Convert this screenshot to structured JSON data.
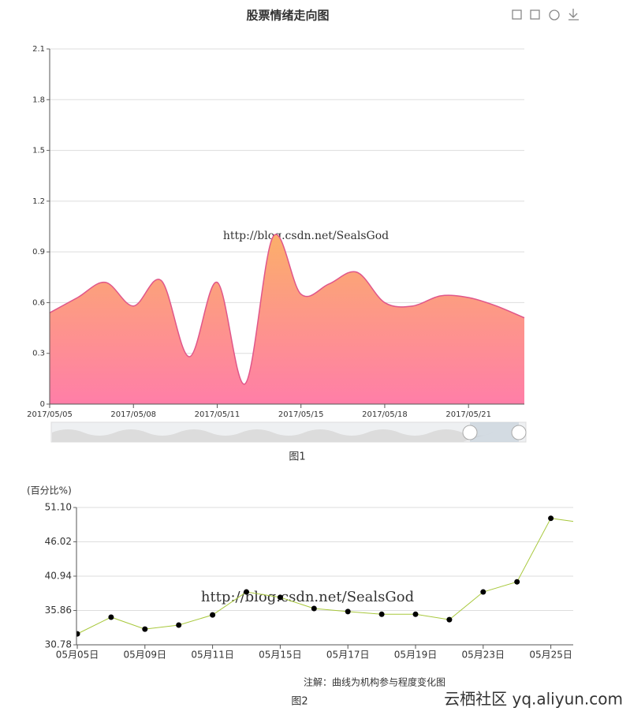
{
  "chart_data": [
    {
      "type": "area",
      "title": "股票情绪走向图",
      "watermark": "http://blog.csdn.net/SealsGod",
      "caption": "图1",
      "categories": [
        "2017/05/05",
        null,
        null,
        "2017/05/08",
        null,
        null,
        "2017/05/11",
        null,
        null,
        "2017/05/15",
        null,
        null,
        "2017/05/18",
        null,
        null,
        "2017/05/21",
        null,
        null
      ],
      "values": [
        0.54,
        0.63,
        0.72,
        0.58,
        0.73,
        0.28,
        0.72,
        0.12,
        0.99,
        0.65,
        0.71,
        0.78,
        0.6,
        0.58,
        0.64,
        0.63,
        0.58,
        0.51
      ],
      "color": "#e0568a",
      "ylim": [
        0,
        2.1
      ],
      "yticks": [
        0,
        0.3,
        0.6,
        0.9,
        1.2,
        1.5,
        1.8,
        2.1
      ],
      "grid": true,
      "smooth": true
    },
    {
      "type": "line",
      "y_label": "(百分比%)",
      "watermark": "http://blog.csdn.net/SealsGod",
      "note": "注解：曲线为机构参与程度变化图",
      "caption": "图2",
      "categories": [
        "05月05日",
        null,
        "05月09日",
        null,
        "05月11日",
        null,
        "05月15日",
        null,
        "05月17日",
        null,
        "05月19日",
        null,
        "05月23日",
        null,
        "05月25日",
        null
      ],
      "values": [
        32.4,
        34.87,
        33.1,
        33.7,
        35.2,
        38.6,
        37.8,
        36.15,
        35.7,
        35.3,
        35.3,
        34.5,
        38.6,
        40.1,
        49.5,
        48.8
      ],
      "color": "#a8c83c",
      "marker_color": "#000000",
      "ylim": [
        30.78,
        51.1
      ],
      "yticks": [
        {
          "value": 30.78,
          "label": "30.78"
        },
        {
          "value": 35.86,
          "label": "35.86"
        },
        {
          "value": 40.94,
          "label": "40.94"
        },
        {
          "value": 46.02,
          "label": "46.02"
        },
        {
          "value": 51.1,
          "label": "51.10"
        }
      ],
      "grid": true
    }
  ],
  "footer_watermark": "云栖社区 yq.aliyun.com"
}
